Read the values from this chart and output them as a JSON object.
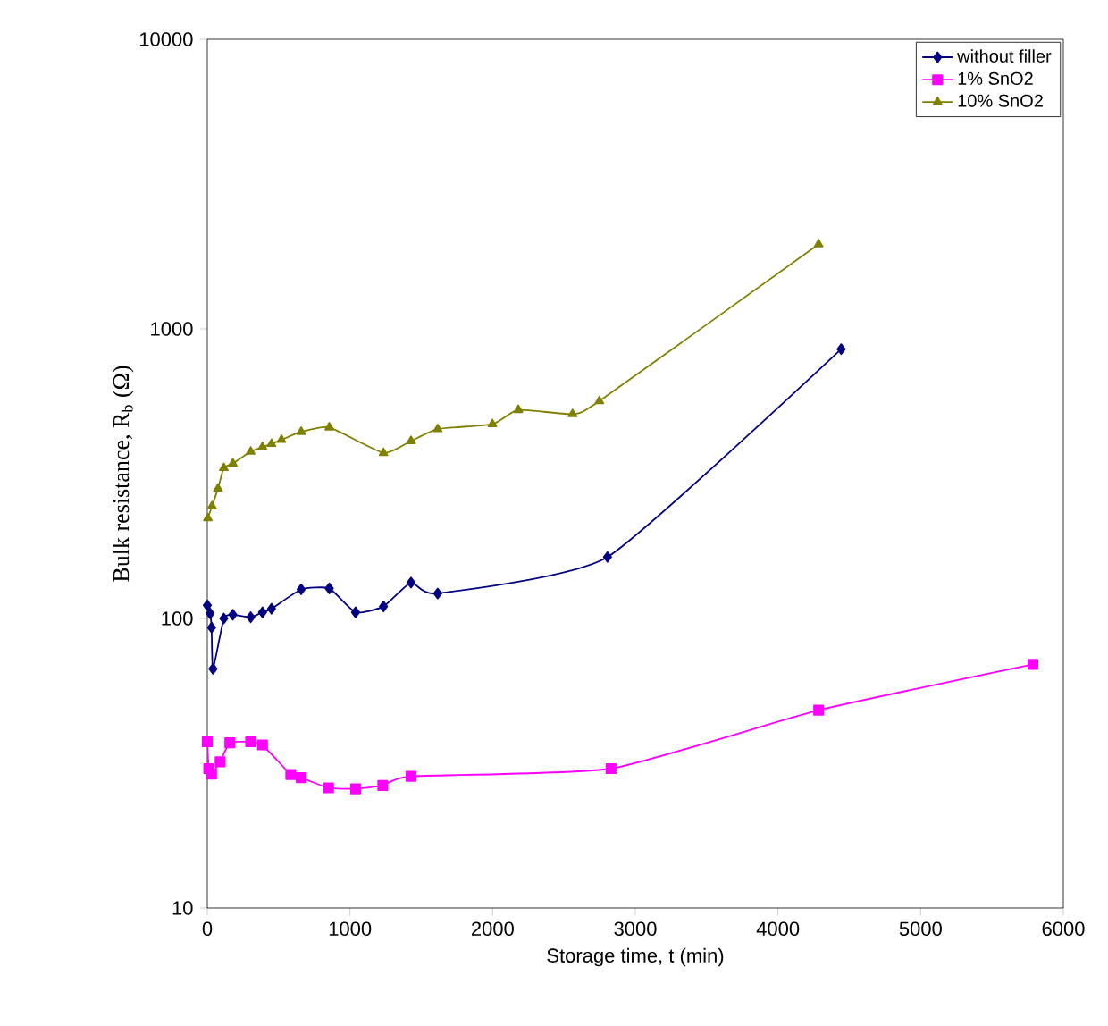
{
  "chart_data": {
    "type": "line",
    "xlabel": "Storage time, t (min)",
    "ylabel": "Bulk resistance, R$_{b}$ (Ω)",
    "log": "y",
    "xlim": [
      0,
      6000
    ],
    "xticks": [
      0,
      1000,
      2000,
      3000,
      4000,
      5000,
      6000
    ],
    "ylim": [
      10,
      10000
    ],
    "yticks": [
      10,
      100,
      1000,
      10000
    ],
    "legend": "top right",
    "grid": false,
    "line_style": "solid",
    "series": [
      {
        "name": "without filler",
        "color": "#000080",
        "marker": "diamond",
        "x": [
          0,
          20,
          30,
          40,
          116,
          179,
          304,
          387,
          450,
          658,
          855,
          1039,
          1235,
          1428,
          1615,
          2805,
          4443
        ],
        "values": [
          111,
          104,
          93,
          67,
          100,
          103,
          101,
          105,
          108,
          126,
          127,
          105,
          110,
          133,
          122,
          163,
          851
        ]
      },
      {
        "name": "1% SnO2",
        "color": "#ff00ff",
        "marker": "square",
        "x": [
          0,
          10,
          30,
          90,
          158,
          304,
          387,
          585,
          658,
          850,
          1040,
          1230,
          1428,
          2830,
          4285,
          5787
        ],
        "values": [
          37.5,
          30.3,
          29,
          32,
          37.2,
          37.5,
          36.6,
          28.9,
          28.2,
          26,
          25.8,
          26.5,
          28.5,
          30.3,
          48.2,
          69.4
        ]
      },
      {
        "name": "10% SnO2",
        "color": "#808000",
        "marker": "triangle",
        "x": [
          4,
          33,
          75,
          116,
          179,
          304,
          387,
          450,
          520,
          658,
          855,
          1235,
          1428,
          1615,
          1998,
          2180,
          2560,
          2748,
          4285
        ],
        "values": [
          222,
          244,
          281,
          331,
          343,
          377,
          391,
          401,
          414,
          441,
          457,
          373,
          410,
          451,
          469,
          525,
          508,
          563,
          1960
        ]
      }
    ]
  }
}
